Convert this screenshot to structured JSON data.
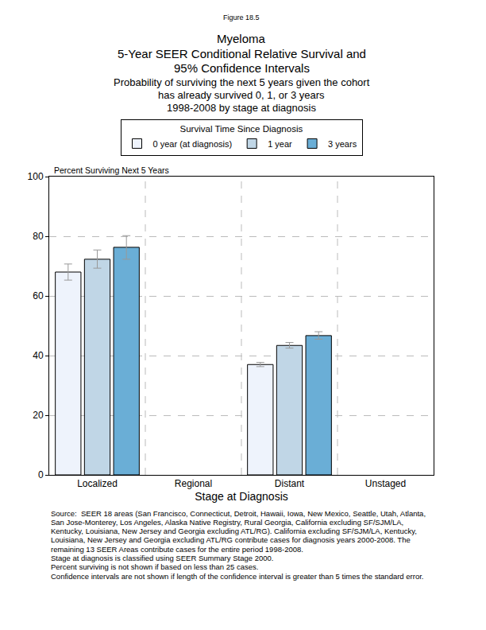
{
  "chart_data": {
    "type": "bar",
    "figure_label": "Figure 18.5",
    "title": [
      "Myeloma",
      "5-Year SEER Conditional Relative Survival and",
      "95% Confidence Intervals"
    ],
    "subtitle": [
      "Probability of surviving the next 5 years given the cohort",
      "has already survived 0, 1, or 3 years",
      "1998-2008 by stage at diagnosis"
    ],
    "legend_title": "Survival Time Since Diagnosis",
    "y_label": "Percent Surviving Next 5 Years",
    "x_label": "Stage at Diagnosis",
    "categories": [
      "Localized",
      "Regional",
      "Distant",
      "Unstaged"
    ],
    "series": [
      {
        "name": "0 year (at diagnosis)",
        "color": "#eef3fc",
        "values": [
          68.0,
          null,
          37.0,
          null
        ],
        "ci_lower": [
          65.3,
          null,
          36.3,
          null
        ],
        "ci_upper": [
          70.7,
          null,
          37.7,
          null
        ]
      },
      {
        "name": "1 year",
        "color": "#c0d6e6",
        "values": [
          72.3,
          null,
          43.4,
          null
        ],
        "ci_lower": [
          69.3,
          null,
          42.5,
          null
        ],
        "ci_upper": [
          75.4,
          null,
          44.4,
          null
        ]
      },
      {
        "name": "3 years",
        "color": "#6aaed6",
        "values": [
          76.3,
          null,
          46.7,
          null
        ],
        "ci_lower": [
          72.3,
          null,
          45.5,
          null
        ],
        "ci_upper": [
          80.2,
          null,
          48.0,
          null
        ]
      }
    ],
    "ylim": [
      0,
      100
    ],
    "yticks": [
      0,
      20,
      40,
      60,
      80,
      100
    ],
    "grid": true,
    "legend": "top",
    "notes": [
      "Source:  SEER 18 areas (San Francisco, Connecticut, Detroit, Hawaii, Iowa, New Mexico, Seattle, Utah, Atlanta,",
      "San Jose-Monterey, Los Angeles, Alaska Native Registry, Rural Georgia, California excluding SF/SJM/LA,",
      "Kentucky, Louisiana, New Jersey and Georgia excluding ATL/RG). California excluding SF/SJM/LA, Kentucky,",
      "Louisiana, New Jersey and Georgia excluding ATL/RG contribute cases for diagnosis years 2000-2008. The",
      "remaining 13 SEER Areas contribute cases for the entire period 1998-2008.",
      "Stage at diagnosis is classified using SEER Summary Stage 2000.",
      "Percent surviving is not shown if based on less than 25 cases.",
      "Confidence intervals are not shown if length of the confidence interval is greater than 5 times the standard error."
    ]
  }
}
